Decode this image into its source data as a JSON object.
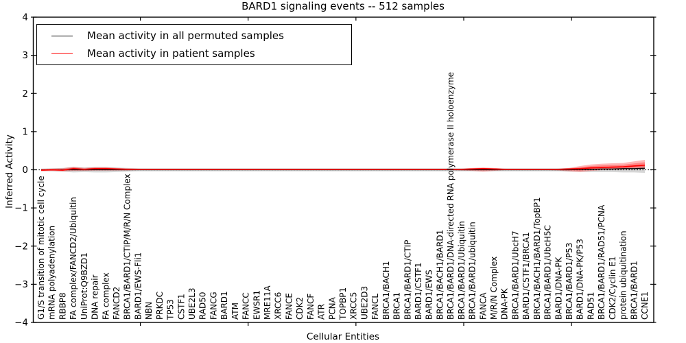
{
  "chart_data": {
    "type": "line",
    "title": "BARD1 signaling events -- 512 samples",
    "xlabel": "Cellular Entities",
    "ylabel": "Inferred Activity",
    "ylim": [
      -4,
      4
    ],
    "yticks": [
      "4",
      "3",
      "2",
      "1",
      "0",
      "−1",
      "−2",
      "−3",
      "−4"
    ],
    "ytick_values": [
      4,
      3,
      2,
      1,
      0,
      -1,
      -2,
      -3,
      -4
    ],
    "grid": false,
    "zero_line_style": "dotted",
    "legend_position": "upper-left",
    "xtick_indices": [
      9.2,
      19.2,
      29.2,
      39.2,
      49.2
    ],
    "categories": [
      "G1/S transition of mitotic cell cycle",
      "mRNA polyadenylation",
      "RBBP8",
      "FA complex/FANCD2/Ubiquitin",
      "UniProt:Q9BZD1",
      "DNA repair",
      "FA complex",
      "FANCD2",
      "BRCA1/BARD1/CTIP/M/R/N Complex",
      "BARD1/EWS-Fli1",
      "NBN",
      "PRKDC",
      "TP53",
      "CSTF1",
      "UBE2L3",
      "RAD50",
      "FANCG",
      "BARD1",
      "ATM",
      "FANCC",
      "EWSR1",
      "MRE11A",
      "XRCC6",
      "FANCE",
      "CDK2",
      "FANCF",
      "ATR",
      "PCNA",
      "TOPBP1",
      "XRCC5",
      "UBE2D3",
      "FANCL",
      "BRCA1/BACH1",
      "BRCA1",
      "BRCA1/BARD1/CTIP",
      "BARD1/CSTF1",
      "BARD1/EWS",
      "BRCA1/BACH1/BARD1",
      "BRCA1/BARD1/DNA-directed RNA polymerase II holoenzyme",
      "BRCA1/BARD1/Ubiquitin",
      "BRCA1/BARD1/ubiquitin",
      "FANCA",
      "M/R/N Complex",
      "DNA-PK",
      "BRCA1/BARD1/UbcH7",
      "BARD1/CSTF1/BRCA1",
      "BRCA1/BACH1/BARD1/TopBP1",
      "BRCA1/BARD1/UbcH5C",
      "BARD1/DNA-PK",
      "BRCA1/BARD1/P53",
      "BARD1/DNA-PK/P53",
      "RAD51",
      "BRCA1/BARD1/RAD51/PCNA",
      "CDK2/Cyclin E1",
      "protein ubiquitination",
      "BRCA1/BARD1",
      "CCNE1"
    ],
    "series": [
      {
        "name": "Mean activity in all permuted samples",
        "color": "#000000",
        "band_color": "rgba(0,0,0,0.16)",
        "values": [
          0,
          0,
          0,
          0,
          0,
          0,
          0,
          0,
          0,
          0,
          0,
          0,
          0,
          0,
          0,
          0,
          0,
          0,
          0,
          0,
          0,
          0,
          0,
          0,
          0,
          0,
          0,
          0,
          0,
          0,
          0,
          0,
          0,
          0,
          0,
          0,
          0,
          0,
          0,
          0,
          0,
          0,
          0,
          0,
          0,
          0,
          0,
          0,
          0,
          0,
          0.01,
          0.01,
          0.02,
          0.02,
          0.03,
          0.03,
          0.04
        ],
        "band_upper": [
          0.03,
          0.04,
          0.05,
          0.07,
          0.06,
          0.07,
          0.07,
          0.06,
          0.05,
          0.04,
          0.04,
          0.04,
          0.04,
          0.04,
          0.04,
          0.04,
          0.04,
          0.04,
          0.04,
          0.04,
          0.04,
          0.04,
          0.04,
          0.04,
          0.04,
          0.04,
          0.04,
          0.04,
          0.04,
          0.04,
          0.04,
          0.04,
          0.04,
          0.04,
          0.04,
          0.04,
          0.04,
          0.04,
          0.04,
          0.04,
          0.04,
          0.04,
          0.04,
          0.04,
          0.04,
          0.04,
          0.04,
          0.04,
          0.04,
          0.05,
          0.05,
          0.06,
          0.07,
          0.07,
          0.08,
          0.09,
          0.1
        ],
        "band_lower": [
          -0.03,
          -0.04,
          -0.05,
          -0.07,
          -0.06,
          -0.07,
          -0.07,
          -0.06,
          -0.05,
          -0.04,
          -0.04,
          -0.04,
          -0.04,
          -0.04,
          -0.04,
          -0.04,
          -0.04,
          -0.04,
          -0.04,
          -0.04,
          -0.04,
          -0.04,
          -0.04,
          -0.04,
          -0.04,
          -0.04,
          -0.04,
          -0.04,
          -0.04,
          -0.04,
          -0.04,
          -0.04,
          -0.04,
          -0.04,
          -0.04,
          -0.04,
          -0.04,
          -0.04,
          -0.04,
          -0.04,
          -0.04,
          -0.04,
          -0.04,
          -0.04,
          -0.04,
          -0.04,
          -0.04,
          -0.04,
          -0.04,
          -0.05,
          -0.05,
          -0.06,
          -0.06,
          -0.06,
          -0.07,
          -0.07,
          -0.08
        ]
      },
      {
        "name": "Mean activity in patient samples",
        "color": "#ff0000",
        "band_color": "rgba(255,0,0,0.28)",
        "values": [
          -0.01,
          0.0,
          -0.01,
          0.03,
          0.01,
          0.03,
          0.03,
          0.02,
          0.01,
          0.01,
          0.01,
          0.01,
          0.01,
          0.01,
          0.01,
          0.01,
          0.01,
          0.01,
          0.01,
          0.01,
          0.01,
          0.01,
          0.01,
          0.01,
          0.01,
          0.01,
          0.01,
          0.01,
          0.01,
          0.01,
          0.01,
          0.01,
          0.01,
          0.01,
          0.01,
          0.01,
          0.01,
          0.01,
          0.01,
          0.01,
          0.02,
          0.03,
          0.02,
          0.01,
          0.01,
          0.01,
          0.01,
          0.01,
          0.01,
          0.02,
          0.03,
          0.05,
          0.06,
          0.07,
          0.08,
          0.1,
          0.12
        ],
        "band_upper": [
          0.02,
          0.03,
          0.04,
          0.08,
          0.05,
          0.07,
          0.07,
          0.05,
          0.04,
          0.03,
          0.02,
          0.02,
          0.02,
          0.02,
          0.02,
          0.02,
          0.02,
          0.02,
          0.02,
          0.02,
          0.02,
          0.02,
          0.02,
          0.02,
          0.02,
          0.02,
          0.02,
          0.02,
          0.02,
          0.02,
          0.02,
          0.02,
          0.02,
          0.02,
          0.02,
          0.02,
          0.02,
          0.02,
          0.02,
          0.03,
          0.05,
          0.06,
          0.05,
          0.03,
          0.02,
          0.02,
          0.02,
          0.02,
          0.03,
          0.05,
          0.1,
          0.14,
          0.16,
          0.17,
          0.18,
          0.22,
          0.26
        ],
        "band_lower": [
          -0.04,
          -0.03,
          -0.04,
          -0.03,
          -0.03,
          -0.02,
          -0.02,
          -0.02,
          -0.02,
          -0.01,
          -0.01,
          -0.01,
          -0.01,
          -0.01,
          -0.01,
          -0.01,
          -0.01,
          -0.01,
          -0.01,
          -0.01,
          -0.01,
          -0.01,
          -0.01,
          -0.01,
          -0.01,
          -0.01,
          -0.01,
          -0.01,
          -0.01,
          -0.01,
          -0.01,
          -0.01,
          -0.01,
          -0.01,
          -0.01,
          -0.01,
          -0.01,
          -0.01,
          -0.01,
          -0.02,
          -0.03,
          -0.05,
          -0.03,
          -0.01,
          -0.01,
          -0.01,
          -0.01,
          -0.01,
          -0.02,
          -0.04,
          -0.06,
          -0.03,
          -0.01,
          0.0,
          0.01,
          0.02,
          0.02
        ]
      }
    ]
  }
}
